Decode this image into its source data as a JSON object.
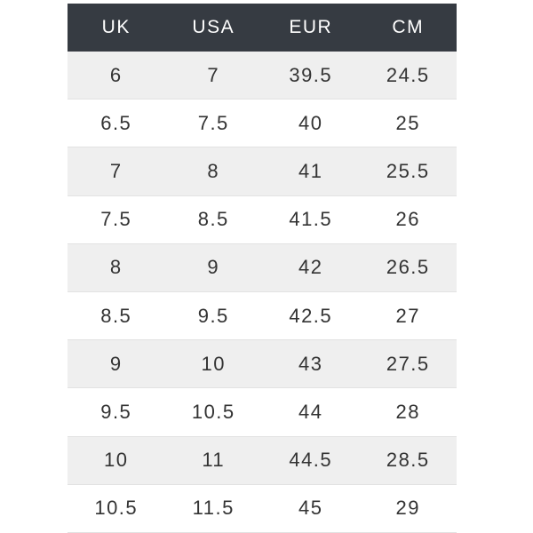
{
  "table": {
    "header": [
      "UK",
      "USA",
      "EUR",
      "CM"
    ],
    "rows": [
      [
        "6",
        "7",
        "39.5",
        "24.5"
      ],
      [
        "6.5",
        "7.5",
        "40",
        "25"
      ],
      [
        "7",
        "8",
        "41",
        "25.5"
      ],
      [
        "7.5",
        "8.5",
        "41.5",
        "26"
      ],
      [
        "8",
        "9",
        "42",
        "26.5"
      ],
      [
        "8.5",
        "9.5",
        "42.5",
        "27"
      ],
      [
        "9",
        "10",
        "43",
        "27.5"
      ],
      [
        "9.5",
        "10.5",
        "44",
        "28"
      ],
      [
        "10",
        "11",
        "44.5",
        "28.5"
      ],
      [
        "10.5",
        "11.5",
        "45",
        "29"
      ]
    ]
  }
}
